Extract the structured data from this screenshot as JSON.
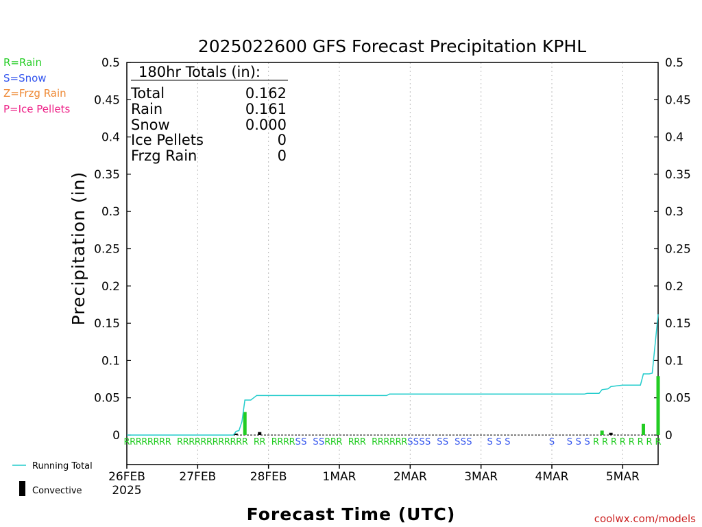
{
  "colors": {
    "rain": "#22cc22",
    "snow": "#3355ee",
    "frzg": "#ee8833",
    "ice": "#ee2288",
    "running_total_line": "#22cccc",
    "credit": "#cc2222",
    "grid": "#bbbbbb"
  },
  "legend_top": {
    "rain": "R=Rain",
    "snow": "S=Snow",
    "frzg": "Z=Frzg Rain",
    "ice": "P=Ice Pellets"
  },
  "legend_bottom": {
    "running_total": "Running Total",
    "convective": "Convective"
  },
  "totals_box": {
    "heading": "180hr Totals (in):",
    "rows": [
      {
        "label": "Total",
        "value": "0.162"
      },
      {
        "label": "Rain",
        "value": "0.161"
      },
      {
        "label": "Snow",
        "value": "0.000"
      },
      {
        "label": "Ice Pellets",
        "value": "0"
      },
      {
        "label": "Frzg Rain",
        "value": "0"
      }
    ]
  },
  "credit": "coolwx.com/models",
  "chart_data": {
    "type": "bar",
    "title": "2025022600 GFS Forecast Precipitation KPHL",
    "xlabel": "Forecast Time (UTC)",
    "ylabel": "Precipitation (in)",
    "ylim": [
      0,
      0.5
    ],
    "yticks": [
      0,
      0.05,
      0.1,
      0.15,
      0.2,
      0.25,
      0.3,
      0.35,
      0.4,
      0.45,
      0.5
    ],
    "ytick_labels": [
      "0",
      "0.05",
      "0.1",
      "0.15",
      "0.2",
      "0.25",
      "0.3",
      "0.35",
      "0.4",
      "0.45",
      "0.5"
    ],
    "xlim_hours": [
      0,
      180
    ],
    "x_ticks": [
      {
        "hour": 0,
        "label": "26FEB",
        "sublabel": "2025"
      },
      {
        "hour": 24,
        "label": "27FEB"
      },
      {
        "hour": 48,
        "label": "28FEB"
      },
      {
        "hour": 72,
        "label": "1MAR"
      },
      {
        "hour": 96,
        "label": "2MAR"
      },
      {
        "hour": 120,
        "label": "3MAR"
      },
      {
        "hour": 144,
        "label": "4MAR"
      },
      {
        "hour": 168,
        "label": "5MAR"
      }
    ],
    "grid": "vertical dotted",
    "series": [
      {
        "name": "Running Total",
        "kind": "line",
        "points": [
          [
            0,
            0
          ],
          [
            36,
            0
          ],
          [
            36.5,
            0.002
          ],
          [
            37,
            0.005
          ],
          [
            38,
            0.006
          ],
          [
            39,
            0.018
          ],
          [
            40,
            0.047
          ],
          [
            42,
            0.047
          ],
          [
            43,
            0.05
          ],
          [
            44,
            0.053
          ],
          [
            56,
            0.053
          ],
          [
            70,
            0.053
          ],
          [
            84,
            0.053
          ],
          [
            88,
            0.053
          ],
          [
            89,
            0.055
          ],
          [
            110,
            0.055
          ],
          [
            140,
            0.055
          ],
          [
            155,
            0.055
          ],
          [
            156,
            0.056
          ],
          [
            160,
            0.056
          ],
          [
            161,
            0.061
          ],
          [
            163,
            0.062
          ],
          [
            164,
            0.065
          ],
          [
            166,
            0.066
          ],
          [
            168,
            0.067
          ],
          [
            172,
            0.067
          ],
          [
            174,
            0.067
          ],
          [
            175,
            0.082
          ],
          [
            177,
            0.082
          ],
          [
            178,
            0.083
          ],
          [
            180,
            0.162
          ]
        ]
      },
      {
        "name": "Convective",
        "kind": "bar",
        "bars": [
          {
            "hour": 37,
            "value": 0.002
          },
          {
            "hour": 40,
            "value": 0.031,
            "ptype": "rain"
          },
          {
            "hour": 45,
            "value": 0.004
          },
          {
            "hour": 161,
            "value": 0.006,
            "ptype": "rain"
          },
          {
            "hour": 164,
            "value": 0.003
          },
          {
            "hour": 175,
            "value": 0.015,
            "ptype": "rain"
          },
          {
            "hour": 180,
            "value": 0.079,
            "ptype": "rain"
          }
        ]
      }
    ],
    "precip_type_markers": [
      {
        "hour": 0,
        "type": "R"
      },
      {
        "hour": 2,
        "type": "R"
      },
      {
        "hour": 4,
        "type": "R"
      },
      {
        "hour": 6,
        "type": "R"
      },
      {
        "hour": 8,
        "type": "R"
      },
      {
        "hour": 10,
        "type": "R"
      },
      {
        "hour": 12,
        "type": "R"
      },
      {
        "hour": 14,
        "type": "R"
      },
      {
        "hour": 18,
        "type": "R"
      },
      {
        "hour": 20,
        "type": "R"
      },
      {
        "hour": 22,
        "type": "R"
      },
      {
        "hour": 24,
        "type": "R"
      },
      {
        "hour": 26,
        "type": "R"
      },
      {
        "hour": 28,
        "type": "R"
      },
      {
        "hour": 30,
        "type": "R"
      },
      {
        "hour": 32,
        "type": "R"
      },
      {
        "hour": 34,
        "type": "R"
      },
      {
        "hour": 36,
        "type": "R"
      },
      {
        "hour": 38,
        "type": "R"
      },
      {
        "hour": 40,
        "type": "R"
      },
      {
        "hour": 44,
        "type": "R"
      },
      {
        "hour": 46,
        "type": "R"
      },
      {
        "hour": 50,
        "type": "R"
      },
      {
        "hour": 52,
        "type": "R"
      },
      {
        "hour": 54,
        "type": "R"
      },
      {
        "hour": 56,
        "type": "R"
      },
      {
        "hour": 58,
        "type": "S"
      },
      {
        "hour": 60,
        "type": "S"
      },
      {
        "hour": 64,
        "type": "S"
      },
      {
        "hour": 66,
        "type": "S"
      },
      {
        "hour": 68,
        "type": "R"
      },
      {
        "hour": 70,
        "type": "R"
      },
      {
        "hour": 72,
        "type": "R"
      },
      {
        "hour": 76,
        "type": "R"
      },
      {
        "hour": 78,
        "type": "R"
      },
      {
        "hour": 80,
        "type": "R"
      },
      {
        "hour": 84,
        "type": "R"
      },
      {
        "hour": 86,
        "type": "R"
      },
      {
        "hour": 88,
        "type": "R"
      },
      {
        "hour": 90,
        "type": "R"
      },
      {
        "hour": 92,
        "type": "R"
      },
      {
        "hour": 94,
        "type": "R"
      },
      {
        "hour": 96,
        "type": "S"
      },
      {
        "hour": 98,
        "type": "S"
      },
      {
        "hour": 100,
        "type": "S"
      },
      {
        "hour": 102,
        "type": "S"
      },
      {
        "hour": 106,
        "type": "S"
      },
      {
        "hour": 108,
        "type": "S"
      },
      {
        "hour": 112,
        "type": "S"
      },
      {
        "hour": 114,
        "type": "S"
      },
      {
        "hour": 116,
        "type": "S"
      },
      {
        "hour": 123,
        "type": "S"
      },
      {
        "hour": 126,
        "type": "S"
      },
      {
        "hour": 129,
        "type": "S"
      },
      {
        "hour": 144,
        "type": "S"
      },
      {
        "hour": 150,
        "type": "S"
      },
      {
        "hour": 153,
        "type": "S"
      },
      {
        "hour": 156,
        "type": "S"
      },
      {
        "hour": 159,
        "type": "R"
      },
      {
        "hour": 162,
        "type": "R"
      },
      {
        "hour": 165,
        "type": "R"
      },
      {
        "hour": 168,
        "type": "R"
      },
      {
        "hour": 171,
        "type": "R"
      },
      {
        "hour": 174,
        "type": "R"
      },
      {
        "hour": 177,
        "type": "R"
      },
      {
        "hour": 180,
        "type": "R"
      }
    ]
  }
}
